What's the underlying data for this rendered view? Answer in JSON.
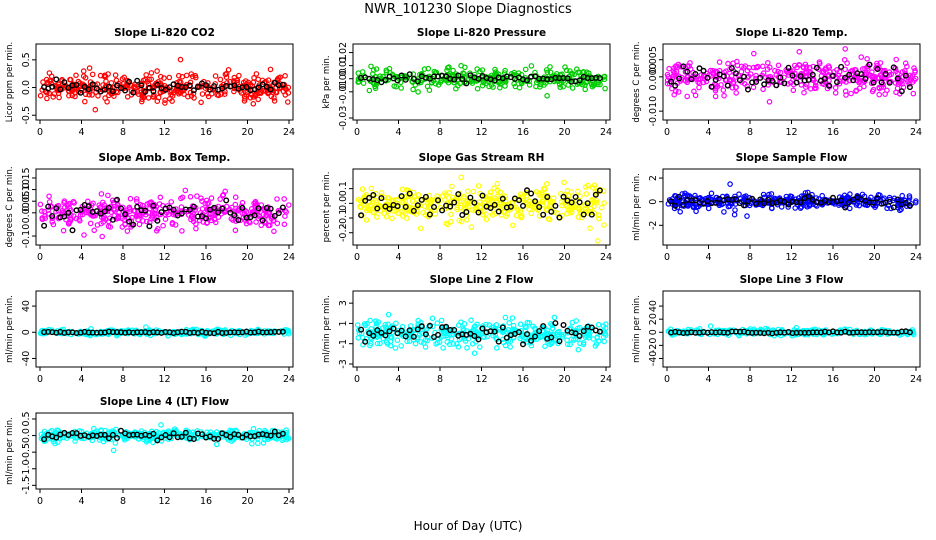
{
  "title": "NWR_101230  Slope Diagnostics",
  "xlabel": "Hour of Day (UTC)",
  "chart_data": [
    {
      "type": "scatter",
      "title": "Slope Li-820 CO2",
      "ylabel": "Licor ppm per min.",
      "xlim": [
        0,
        24
      ],
      "ylim": [
        -0.55,
        0.75
      ],
      "yticks": [
        "-0.5",
        "0.0",
        "0.5"
      ],
      "ytick_values": [
        -0.5,
        0,
        0.5
      ],
      "xticks": [
        "0",
        "4",
        "8",
        "12",
        "16",
        "20",
        "24"
      ],
      "color": "#ff0000",
      "spread": 0.17,
      "n": 380,
      "black_spread": 0.08
    },
    {
      "type": "scatter",
      "title": "Slope Li-820 Pressure",
      "ylabel": "kPa per min.",
      "xlim": [
        0,
        24
      ],
      "ylim": [
        -0.03,
        0.025
      ],
      "yticks": [
        "-0.03",
        "-0.01",
        "0.00",
        "0.01",
        "0.02"
      ],
      "ytick_values": [
        -0.03,
        -0.01,
        0,
        0.01,
        0.02
      ],
      "xticks": [
        "0",
        "4",
        "8",
        "12",
        "16",
        "20",
        "24"
      ],
      "color": "#00cc00",
      "spread": 0.005,
      "n": 320,
      "black_spread": 0.002
    },
    {
      "type": "scatter",
      "title": "Slope Li-820 Temp.",
      "ylabel": "degrees C per min.",
      "xlim": [
        0,
        24
      ],
      "ylim": [
        -0.012,
        0.009
      ],
      "yticks": [
        "-0.010",
        "0.000",
        "0.005"
      ],
      "ytick_values": [
        -0.01,
        0,
        0.005
      ],
      "xticks": [
        "0",
        "4",
        "8",
        "12",
        "16",
        "20",
        "24"
      ],
      "color": "#ff00ff",
      "spread": 0.0032,
      "n": 380,
      "black_spread": 0.0022
    },
    {
      "type": "scatter",
      "title": "Slope Amb. Box Temp.",
      "ylabel": "degrees C per min.",
      "xlim": [
        0,
        24
      ],
      "ylim": [
        -0.13,
        0.18
      ],
      "yticks": [
        "-0.10",
        "0.00",
        "0.05",
        "0.10",
        "0.15"
      ],
      "ytick_values": [
        -0.1,
        0,
        0.05,
        0.1,
        0.15
      ],
      "xticks": [
        "0",
        "4",
        "8",
        "12",
        "16",
        "20",
        "24"
      ],
      "color": "#ff00ff",
      "spread": 0.045,
      "n": 380,
      "black_spread": 0.035
    },
    {
      "type": "scatter",
      "title": "Slope Gas Stream RH",
      "ylabel": "percent per min.",
      "xlim": [
        0,
        24
      ],
      "ylim": [
        -0.27,
        0.22
      ],
      "yticks": [
        "-0.2",
        "-0.1",
        "0.0",
        "0.1"
      ],
      "ytick_values": [
        -0.2,
        -0.1,
        0,
        0.1
      ],
      "xticks": [
        "0",
        "4",
        "8",
        "12",
        "16",
        "20",
        "24"
      ],
      "color": "#ffff00",
      "spread": 0.08,
      "n": 380,
      "black_spread": 0.06
    },
    {
      "type": "scatter",
      "title": "Slope Sample Flow",
      "ylabel": "ml/min per min.",
      "xlim": [
        0,
        24
      ],
      "ylim": [
        -3.5,
        2.6
      ],
      "yticks": [
        "-2",
        "0",
        "2"
      ],
      "ytick_values": [
        -2,
        0,
        2
      ],
      "xticks": [
        "0",
        "4",
        "8",
        "12",
        "16",
        "20",
        "24"
      ],
      "color": "#0000ff",
      "spread": 0.4,
      "n": 380,
      "black_spread": 0.25
    },
    {
      "type": "scatter",
      "title": "Slope Line 1 Flow",
      "ylabel": "ml/min per min.",
      "xlim": [
        0,
        24
      ],
      "ylim": [
        -50,
        60
      ],
      "yticks": [
        "-40",
        "0",
        "40"
      ],
      "ytick_values": [
        -40,
        0,
        40
      ],
      "xticks": [
        "0",
        "4",
        "8",
        "12",
        "16",
        "20",
        "24"
      ],
      "color": "#00ffff",
      "spread": 3,
      "n": 300,
      "black_spread": 1
    },
    {
      "type": "scatter",
      "title": "Slope Line 2 Flow",
      "ylabel": "ml/min per min.",
      "xlim": [
        0,
        24
      ],
      "ylim": [
        -3.1,
        4
      ],
      "yticks": [
        "-3",
        "-1",
        "1",
        "3"
      ],
      "ytick_values": [
        -3,
        -1,
        1,
        3
      ],
      "xticks": [
        "0",
        "4",
        "8",
        "12",
        "16",
        "20",
        "24"
      ],
      "color": "#00ffff",
      "spread": 0.9,
      "n": 380,
      "black_spread": 0.7
    },
    {
      "type": "scatter",
      "title": "Slope Line 3 Flow",
      "ylabel": "ml/min per min.",
      "xlim": [
        0,
        24
      ],
      "ylim": [
        -50,
        60
      ],
      "yticks": [
        "-40",
        "-20",
        "0",
        "20",
        "40"
      ],
      "ytick_values": [
        -40,
        -20,
        0,
        20,
        40
      ],
      "xticks": [
        "0",
        "4",
        "8",
        "12",
        "16",
        "20",
        "24"
      ],
      "color": "#00ffff",
      "spread": 3,
      "n": 300,
      "black_spread": 1
    },
    {
      "type": "scatter",
      "title": "Slope Line 4 (LT) Flow",
      "ylabel": "ml/min per min.",
      "xlim": [
        0,
        24
      ],
      "ylim": [
        -1.55,
        0.62
      ],
      "yticks": [
        "-1.5",
        "-1.0",
        "-0.5",
        "0.0",
        "0.5"
      ],
      "ytick_values": [
        -1.5,
        -1,
        -0.5,
        0,
        0.5
      ],
      "xticks": [
        "0",
        "4",
        "8",
        "12",
        "16",
        "20",
        "24"
      ],
      "color": "#00ffff",
      "spread": 0.12,
      "n": 380,
      "black_spread": 0.08
    }
  ]
}
